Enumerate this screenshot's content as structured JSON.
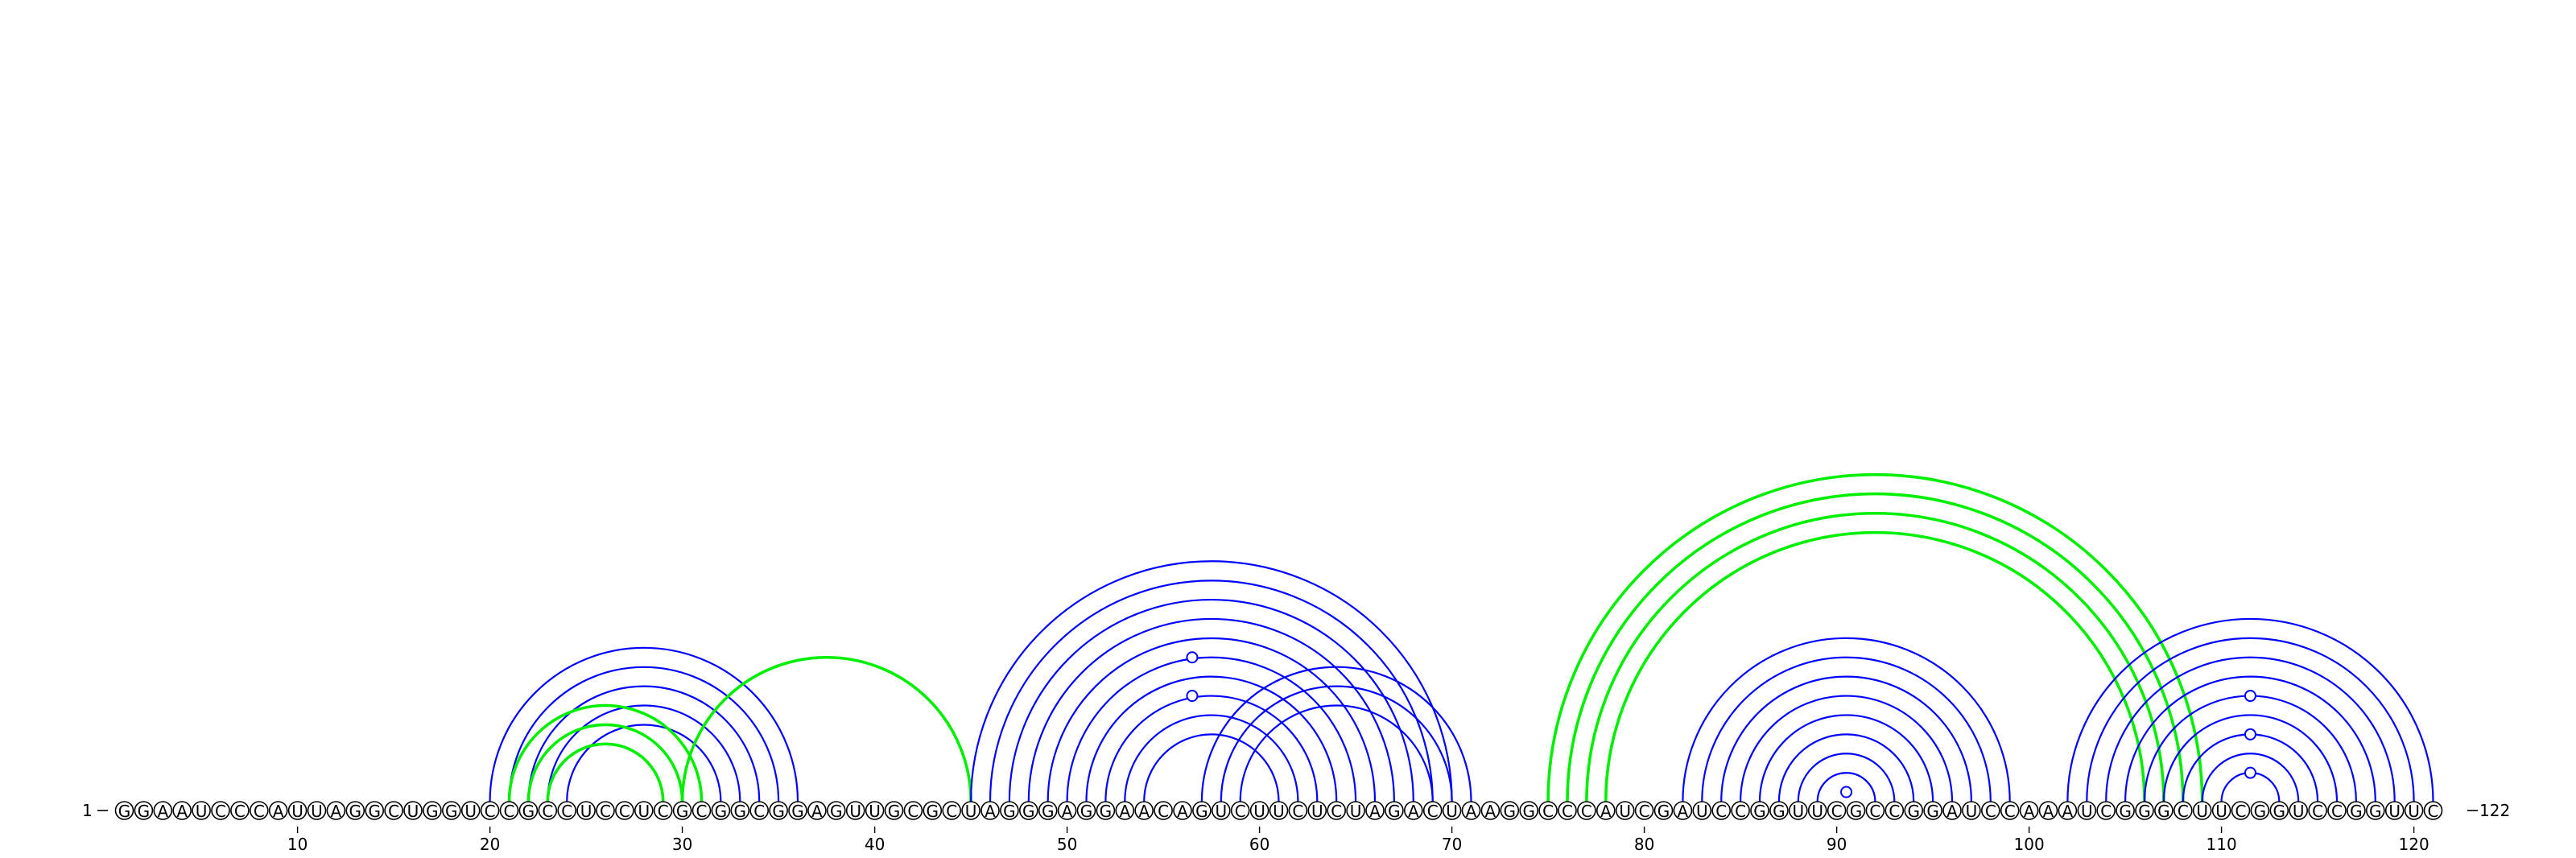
{
  "diagram": {
    "type": "rna-arc-diagram",
    "sequence": "GGAAUCCCAUUAGGCUGGUCCGCCUCCUCGCGGCGGAGUUGCGCUAGGGAGGAACAGUCUUCUCUAGACUAAGGCCCAUCGAUCCGGUUCGCCGGAUCCAAAUCGGGCUUCGGUCCGGUUC",
    "length": 122,
    "start_label": "1",
    "end_label": "122",
    "tick_positions": [
      10,
      20,
      30,
      40,
      50,
      60,
      70,
      80,
      90,
      100,
      110,
      120
    ],
    "tick_labels": [
      "10",
      "20",
      "30",
      "40",
      "50",
      "60",
      "70",
      "80",
      "90",
      "100",
      "110",
      "120"
    ],
    "colors": {
      "blue": "#0000ff",
      "green": "#00ee00",
      "text": "#000000"
    },
    "helices": [
      {
        "color": "blue",
        "i": [
          20,
          21,
          22,
          23,
          24
        ],
        "j": [
          36,
          35,
          34,
          33,
          32
        ]
      },
      {
        "color": "green",
        "i": [
          21,
          22,
          23
        ],
        "j": [
          31,
          30,
          29
        ]
      },
      {
        "color": "green",
        "i": [
          30
        ],
        "j": [
          45
        ]
      },
      {
        "color": "blue",
        "i": [
          45,
          46,
          47,
          48,
          49,
          50,
          51,
          52,
          53,
          54
        ],
        "j": [
          70,
          69,
          68,
          67,
          66,
          65,
          64,
          63,
          62,
          61
        ]
      },
      {
        "color": "blue",
        "i": [
          57,
          58,
          59
        ],
        "j": [
          71,
          70,
          69
        ]
      },
      {
        "color": "green",
        "i": [
          75,
          76,
          77,
          78
        ],
        "j": [
          109,
          108,
          107,
          106
        ]
      },
      {
        "color": "blue",
        "i": [
          82,
          83,
          84,
          85,
          86,
          87,
          88,
          89
        ],
        "j": [
          99,
          98,
          97,
          96,
          95,
          94,
          93,
          92
        ]
      },
      {
        "color": "blue",
        "i": [
          102,
          103,
          104,
          105,
          106,
          107,
          108,
          109,
          110
        ],
        "j": [
          121,
          120,
          119,
          118,
          117,
          116,
          115,
          114,
          113
        ]
      }
    ],
    "noncanonical_pairs": [
      {
        "color": "blue",
        "i": 49,
        "j": 64
      },
      {
        "color": "blue",
        "i": 51,
        "j": 62
      },
      {
        "color": "blue",
        "i": 90,
        "j": 91
      },
      {
        "color": "blue",
        "i": 106,
        "j": 117
      },
      {
        "color": "blue",
        "i": 108,
        "j": 115
      },
      {
        "color": "blue",
        "i": 110,
        "j": 113
      }
    ]
  }
}
